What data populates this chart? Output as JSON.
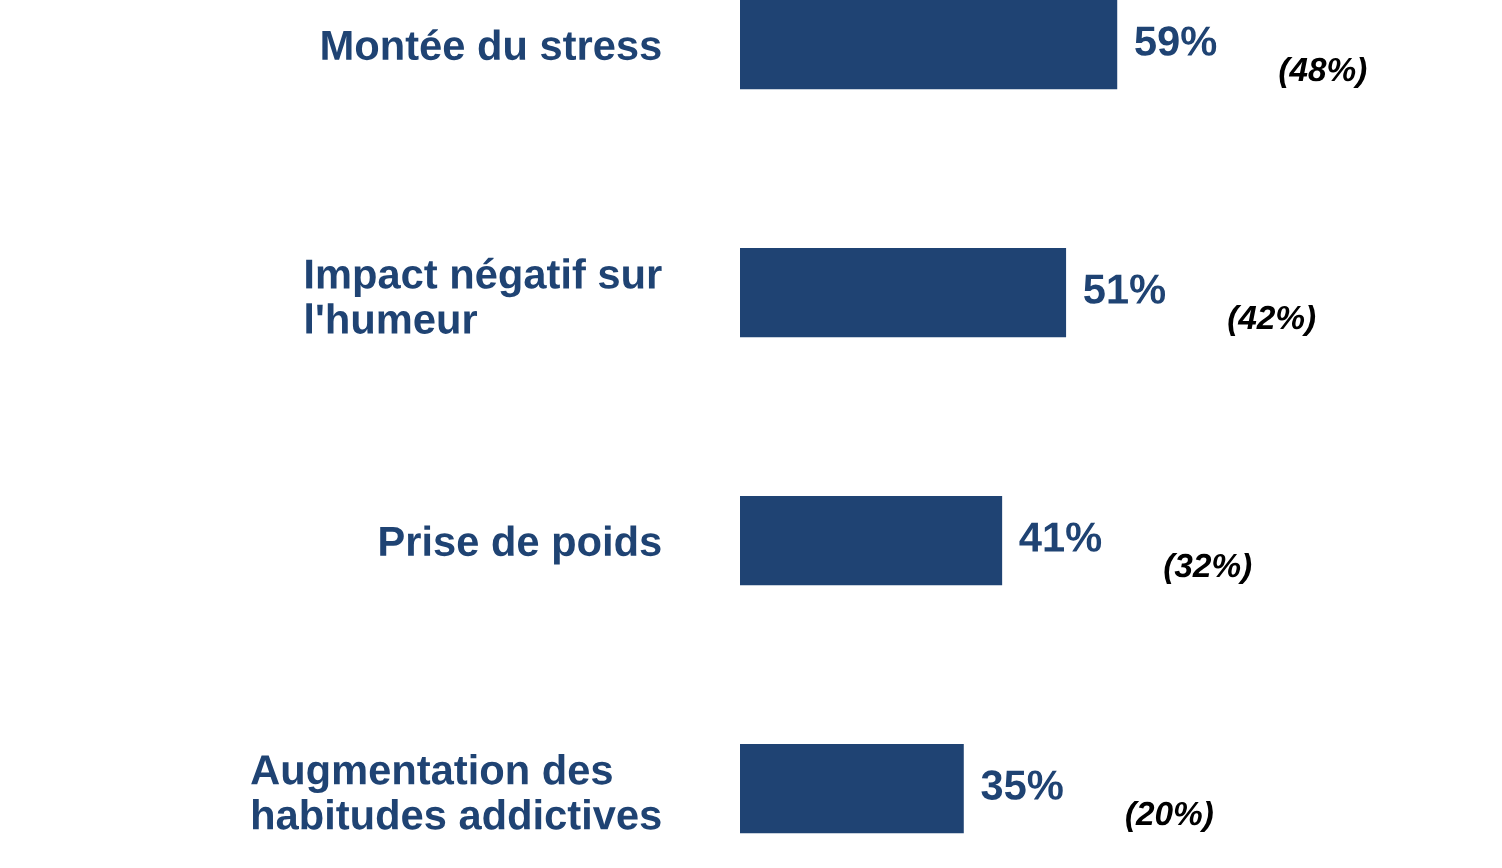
{
  "chart_data": {
    "type": "bar",
    "orientation": "horizontal",
    "categories": [
      "Montée du stress",
      "Impact négatif sur\nl'humeur",
      "Prise de poids",
      "Augmentation des\nhabitudes addictives"
    ],
    "values": [
      59,
      51,
      41,
      35
    ],
    "color": "#1f4373",
    "value_labels": [
      "59%",
      "51%",
      "41%",
      "35%"
    ],
    "annotations": [
      "(48%)",
      "(42%)",
      "(32%)",
      "(20%)"
    ],
    "grid": false,
    "legend": false
  }
}
